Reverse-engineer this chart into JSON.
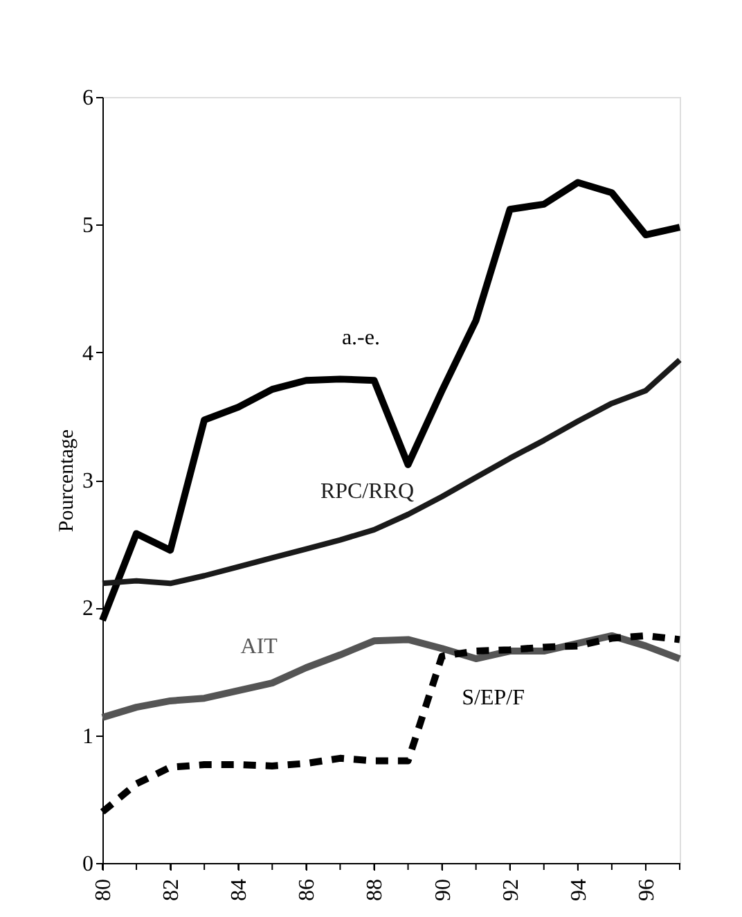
{
  "chart_data": {
    "type": "line",
    "ylabel": "Pourcentage",
    "x": [
      80,
      81,
      82,
      83,
      84,
      85,
      86,
      87,
      88,
      89,
      90,
      91,
      92,
      93,
      94,
      95,
      96,
      97
    ],
    "series": [
      {
        "name": "a.-e.",
        "color": "#000000",
        "line_style": "solid",
        "values": [
          1.9,
          2.58,
          2.45,
          3.47,
          3.57,
          3.71,
          3.78,
          3.79,
          3.78,
          3.12,
          3.7,
          4.25,
          5.12,
          5.16,
          5.33,
          5.25,
          4.92,
          4.98
        ]
      },
      {
        "name": "RPC/RRQ",
        "color": "#1a1a1a",
        "line_style": "solid",
        "values": [
          2.19,
          2.21,
          2.19,
          2.25,
          2.32,
          2.39,
          2.46,
          2.53,
          2.61,
          2.73,
          2.87,
          3.02,
          3.17,
          3.31,
          3.46,
          3.6,
          3.7,
          3.94
        ]
      },
      {
        "name": "AIT",
        "color": "#555555",
        "line_style": "solid",
        "values": [
          1.14,
          1.22,
          1.27,
          1.29,
          1.35,
          1.41,
          1.53,
          1.63,
          1.74,
          1.75,
          1.68,
          1.6,
          1.66,
          1.66,
          1.72,
          1.78,
          1.7,
          1.6
        ]
      },
      {
        "name": "S/EP/F",
        "color": "#000000",
        "line_style": "dashed",
        "values": [
          0.4,
          0.62,
          0.75,
          0.77,
          0.77,
          0.76,
          0.78,
          0.82,
          0.8,
          0.8,
          1.62,
          1.66,
          1.67,
          1.69,
          1.7,
          1.76,
          1.78,
          1.75
        ]
      }
    ],
    "xlim": [
      80,
      97
    ],
    "xticks": [
      80,
      {
        "value": 81,
        "label": null
      },
      82,
      {
        "value": 83,
        "label": null
      },
      84,
      {
        "value": 85,
        "label": null
      },
      86,
      {
        "value": 87,
        "label": null
      },
      88,
      {
        "value": 89,
        "label": null
      },
      90,
      {
        "value": 91,
        "label": null
      },
      92,
      {
        "value": 93,
        "label": null
      },
      94,
      {
        "value": 95,
        "label": null
      },
      96,
      {
        "value": 97,
        "label": null
      }
    ],
    "ylim": [
      0,
      6
    ],
    "yticks": [
      0,
      1,
      2,
      3,
      4,
      5,
      6
    ],
    "grid": false,
    "marker": "none"
  }
}
